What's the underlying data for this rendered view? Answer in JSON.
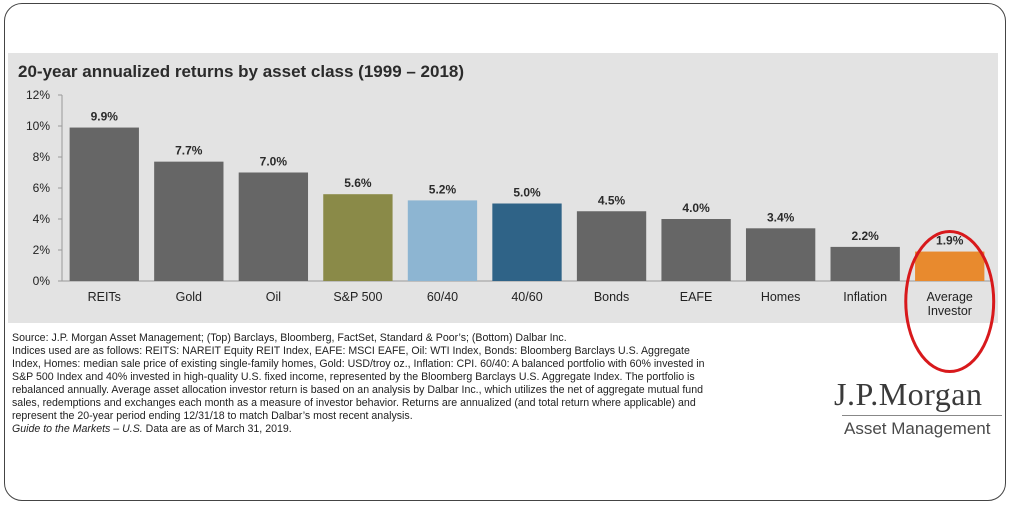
{
  "chart_data": {
    "type": "bar",
    "title": "20-year annualized returns by asset class (1999 – 2018)",
    "categories": [
      "REITs",
      "Gold",
      "Oil",
      "S&P 500",
      "60/40",
      "40/60",
      "Bonds",
      "EAFE",
      "Homes",
      "Inflation",
      "Average Investor"
    ],
    "values": [
      9.9,
      7.7,
      7.0,
      5.6,
      5.2,
      5.0,
      4.5,
      4.0,
      3.4,
      2.2,
      1.9
    ],
    "data_labels": [
      "9.9%",
      "7.7%",
      "7.0%",
      "5.6%",
      "5.2%",
      "5.0%",
      "4.5%",
      "4.0%",
      "3.4%",
      "2.2%",
      "1.9%"
    ],
    "bar_colors": [
      "#666666",
      "#666666",
      "#666666",
      "#8a8a48",
      "#8db5d2",
      "#2f6387",
      "#666666",
      "#666666",
      "#666666",
      "#666666",
      "#e88a2e"
    ],
    "highlight": {
      "category": "Average Investor",
      "color": "#d8191c"
    },
    "ylim": [
      0,
      12
    ],
    "yticks": [
      0,
      2,
      4,
      6,
      8,
      10,
      12
    ],
    "ytick_labels": [
      "0%",
      "2%",
      "4%",
      "6%",
      "8%",
      "10%",
      "12%"
    ],
    "xlabel": "",
    "ylabel": "",
    "grid": false
  },
  "footnotes": [
    "Source: J.P. Morgan Asset Management; (Top) Barclays, Bloomberg, FactSet, Standard & Poor’s; (Bottom) Dalbar Inc.",
    "Indices used are as follows: REITS: NAREIT Equity REIT Index, EAFE: MSCI EAFE, Oil: WTI Index, Bonds: Bloomberg Barclays U.S. Aggregate",
    "Index, Homes: median sale price of existing single-family homes, Gold: USD/troy oz., Inflation: CPI. 60/40: A balanced portfolio with 60% invested in",
    "S&P 500 Index and 40% invested in high-quality U.S. fixed income, represented by the Bloomberg Barclays U.S. Aggregate Index. The portfolio is",
    "rebalanced annually. Average asset allocation investor return is based on an analysis by Dalbar Inc., which utilizes the net of aggregate mutual fund",
    "sales, redemptions and exchanges each month as a measure of investor behavior. Returns are annualized (and total return where applicable) and",
    "represent the 20-year period ending 12/31/18 to match Dalbar’s most recent analysis."
  ],
  "footnote_last": {
    "italic": "Guide to the Markets – U.S.",
    "text": " Data are as of March 31, 2019."
  },
  "logo": {
    "brand": "J.P.Morgan",
    "sub": "Asset Management"
  }
}
